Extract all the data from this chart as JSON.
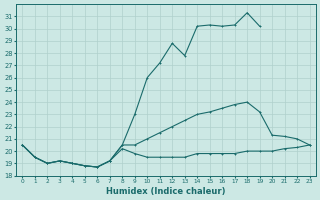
{
  "background_color": "#cce8e4",
  "grid_color": "#b0d0cc",
  "line_color": "#1a6b6b",
  "xlabel": "Humidex (Indice chaleur)",
  "xlim": [
    -0.5,
    23.5
  ],
  "ylim": [
    18,
    32
  ],
  "yticks": [
    18,
    19,
    20,
    21,
    22,
    23,
    24,
    25,
    26,
    27,
    28,
    29,
    30,
    31
  ],
  "xticks": [
    0,
    1,
    2,
    3,
    4,
    5,
    6,
    7,
    8,
    9,
    10,
    11,
    12,
    13,
    14,
    15,
    16,
    17,
    18,
    19,
    20,
    21,
    22,
    23
  ],
  "line1_x": [
    0,
    1,
    2,
    3,
    4,
    5,
    6,
    7,
    8,
    9,
    10,
    11,
    12,
    13,
    14,
    15,
    16,
    17,
    18,
    19,
    20,
    21,
    22,
    23
  ],
  "line1_y": [
    20.5,
    19.5,
    19.0,
    19.2,
    19.0,
    18.8,
    18.7,
    19.2,
    20.5,
    23.0,
    26.0,
    27.2,
    28.8,
    27.8,
    30.2,
    30.3,
    30.2,
    30.3,
    31.3,
    30.2,
    null,
    null,
    null,
    null
  ],
  "line2_x": [
    0,
    1,
    2,
    3,
    4,
    5,
    6,
    7,
    8,
    9,
    10,
    11,
    12,
    13,
    14,
    15,
    16,
    17,
    18,
    19,
    20,
    21,
    22,
    23
  ],
  "line2_y": [
    20.5,
    19.5,
    19.0,
    19.2,
    19.0,
    18.8,
    18.7,
    19.2,
    20.5,
    20.5,
    21.0,
    21.5,
    22.0,
    22.5,
    23.0,
    23.2,
    23.5,
    23.8,
    24.0,
    23.2,
    21.3,
    21.2,
    21.0,
    20.5
  ],
  "line3_x": [
    0,
    1,
    2,
    3,
    4,
    5,
    6,
    7,
    8,
    9,
    10,
    11,
    12,
    13,
    14,
    15,
    16,
    17,
    18,
    19,
    20,
    21,
    22,
    23
  ],
  "line3_y": [
    20.5,
    19.5,
    19.0,
    19.2,
    19.0,
    18.8,
    18.7,
    19.2,
    20.2,
    19.8,
    19.5,
    19.5,
    19.5,
    19.5,
    19.8,
    19.8,
    19.8,
    19.8,
    20.0,
    20.0,
    20.0,
    20.2,
    20.3,
    20.5
  ]
}
